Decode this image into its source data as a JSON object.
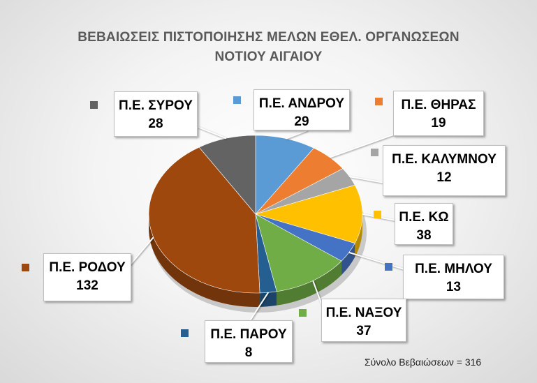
{
  "chart_data": {
    "type": "pie",
    "title": "ΒΕΒΑΙΩΣΕΙΣ ΠΙΣΤΟΠΟΙΗΣΗΣ ΜΕΛΩΝ ΕΘΕΛ. ΟΡΓΑΝΩΣΕΩΝ",
    "subtitle": "ΝΟΤΙΟΥ ΑΙΓΑΙΟΥ",
    "style": "3d-pie",
    "categories": [
      "Π.Ε. ΑΝΔΡΟΥ",
      "Π.Ε. ΘΗΡΑΣ",
      "Π.Ε. ΚΑΛΥΜΝΟΥ",
      "Π.Ε. ΚΩ",
      "Π.Ε. ΜΗΛΟΥ",
      "Π.Ε. ΝΑΞΟΥ",
      "Π.Ε. ΠΑΡΟΥ",
      "Π.Ε. ΡΟΔΟΥ",
      "Π.Ε. ΣΥΡΟΥ"
    ],
    "values": [
      29,
      19,
      12,
      38,
      13,
      37,
      8,
      132,
      28
    ],
    "colors": [
      "#5B9BD5",
      "#ED7D31",
      "#A5A5A5",
      "#FFC000",
      "#4472C4",
      "#70AD47",
      "#255E91",
      "#9E480E",
      "#636363"
    ],
    "label_positions": [
      "top",
      "top-right",
      "right",
      "right",
      "right",
      "bottom-right",
      "bottom",
      "left",
      "top-left"
    ],
    "footnote": "Σύνολο Βεβαιώσεων = 316"
  }
}
